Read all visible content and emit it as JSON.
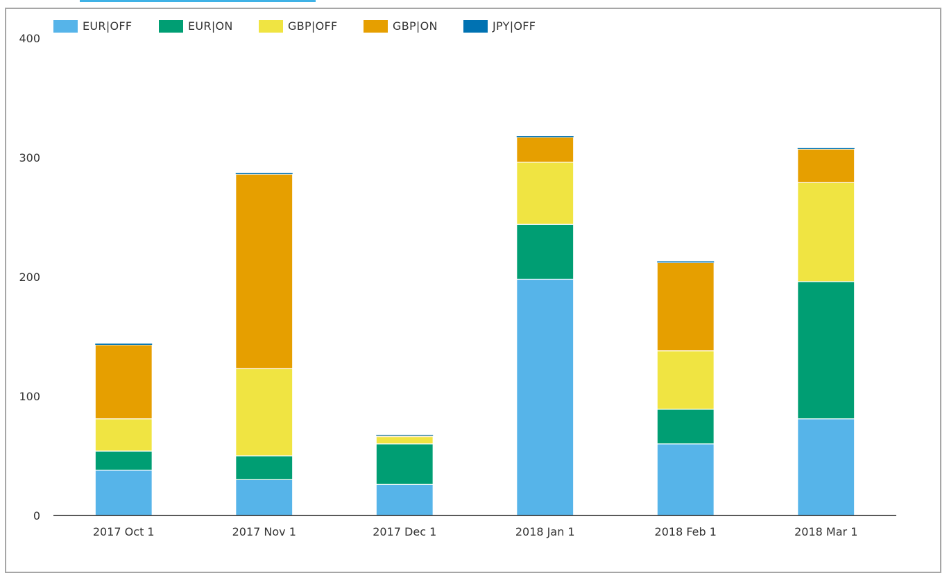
{
  "chart_data": {
    "type": "bar",
    "stacked": true,
    "categories": [
      "2017 Oct 1",
      "2017 Nov 1",
      "2017 Dec 1",
      "2018 Jan 1",
      "2018 Feb 1",
      "2018 Mar 1"
    ],
    "series": [
      {
        "name": "EUR|OFF",
        "color": "#56b4e9",
        "values": [
          38,
          30,
          26,
          198,
          60,
          81
        ]
      },
      {
        "name": "EUR|ON",
        "color": "#009e73",
        "values": [
          16,
          20,
          34,
          46,
          29,
          115
        ]
      },
      {
        "name": "GBP|OFF",
        "color": "#f0e442",
        "values": [
          27,
          73,
          6,
          52,
          49,
          83
        ]
      },
      {
        "name": "GBP|ON",
        "color": "#e69f00",
        "values": [
          62,
          163,
          1,
          21,
          74,
          28
        ]
      },
      {
        "name": "JPY|OFF",
        "color": "#0072b2",
        "values": [
          1,
          1,
          0.5,
          1,
          1,
          1
        ]
      }
    ],
    "ylim": [
      0,
      400
    ],
    "yticks": [
      0,
      100,
      200,
      300,
      400
    ],
    "grid": false,
    "legend_position": "top-left",
    "title": "",
    "xlabel": "",
    "ylabel": ""
  }
}
